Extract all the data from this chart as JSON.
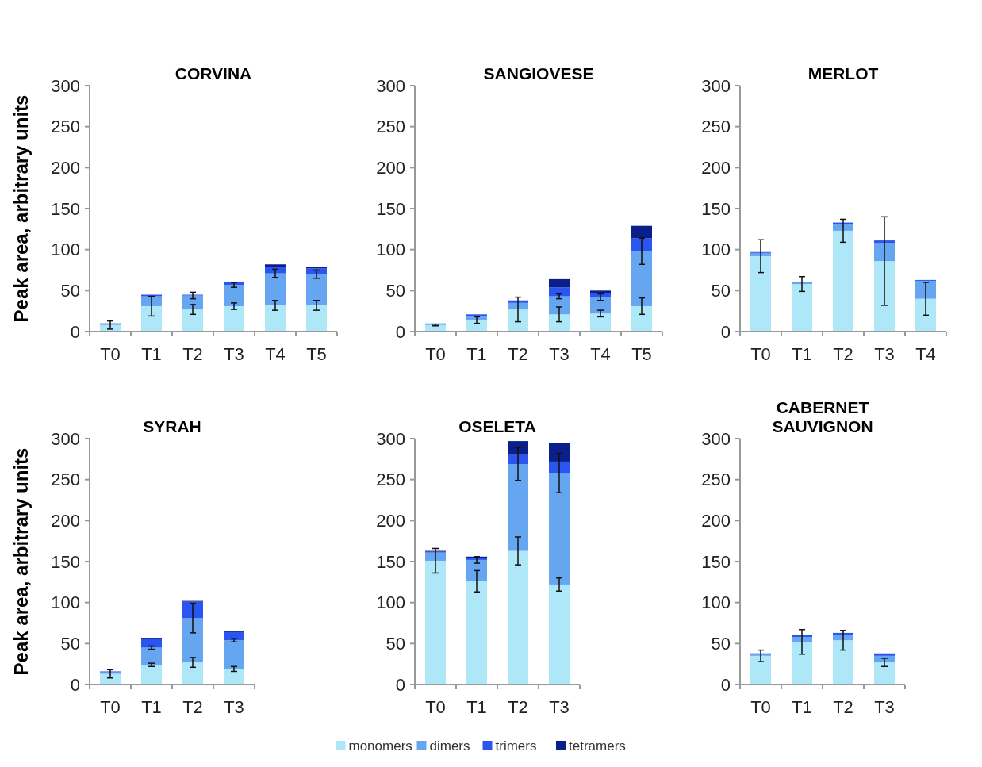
{
  "chart_data": [
    {
      "type": "bar",
      "stacked": true,
      "title": "CORVINA",
      "legend": "bottom",
      "ylabel": "Peak area, arbitrary units",
      "categories": [
        "T0",
        "T1",
        "T2",
        "T3",
        "T4",
        "T5"
      ],
      "ylim": [
        0,
        300
      ],
      "yticks": [
        0,
        50,
        100,
        150,
        200,
        250,
        300
      ],
      "series": [
        {
          "name": "monomers",
          "color": "#aee8f8",
          "values": [
            8,
            31,
            27,
            31,
            32,
            32
          ],
          "errors": [
            5,
            12,
            6,
            4,
            6,
            6
          ]
        },
        {
          "name": "dimers",
          "color": "#66a6f0",
          "values": [
            1,
            12,
            17,
            26,
            39,
            38
          ],
          "errors": [
            null,
            null,
            4,
            3,
            5,
            5
          ]
        },
        {
          "name": "trimers",
          "color": "#2a55f0",
          "values": [
            1,
            2,
            1,
            3,
            8,
            7
          ]
        },
        {
          "name": "tetramers",
          "color": "#0a1f8a",
          "values": [
            0,
            0,
            0,
            1,
            3,
            2
          ]
        }
      ]
    },
    {
      "type": "bar",
      "stacked": true,
      "title": "SANGIOVESE",
      "categories": [
        "T0",
        "T1",
        "T2",
        "T3",
        "T4",
        "T5"
      ],
      "ylim": [
        0,
        300
      ],
      "yticks": [
        0,
        50,
        100,
        150,
        200,
        250,
        300
      ],
      "series": [
        {
          "color": "#aee8f8",
          "values": [
            8,
            14,
            27,
            21,
            22,
            31
          ],
          "errors": [
            1,
            4,
            15,
            9,
            4,
            10
          ]
        },
        {
          "color": "#66a6f0",
          "values": [
            2,
            5,
            8,
            22,
            20,
            67
          ],
          "errors": [
            null,
            null,
            null,
            3,
            4,
            16
          ]
        },
        {
          "color": "#2a55f0",
          "values": [
            0,
            2,
            3,
            11,
            5,
            16
          ]
        },
        {
          "color": "#0a1f8a",
          "values": [
            0,
            0,
            0,
            10,
            3,
            15
          ]
        }
      ]
    },
    {
      "type": "bar",
      "stacked": true,
      "title": "MERLOT",
      "categories": [
        "T0",
        "T1",
        "T2",
        "T3",
        "T4"
      ],
      "ylim": [
        0,
        300
      ],
      "yticks": [
        0,
        50,
        100,
        150,
        200,
        250,
        300
      ],
      "series": [
        {
          "color": "#aee8f8",
          "values": [
            92,
            58,
            123,
            86,
            40
          ],
          "errors": [
            20,
            9,
            14,
            54,
            20
          ]
        },
        {
          "color": "#66a6f0",
          "values": [
            4,
            3,
            8,
            22,
            22
          ]
        },
        {
          "color": "#2a55f0",
          "values": [
            1,
            0,
            2,
            3,
            1
          ]
        },
        {
          "color": "#0a1f8a",
          "values": [
            0,
            0,
            0,
            1,
            0
          ]
        }
      ]
    },
    {
      "type": "bar",
      "stacked": true,
      "title": "SYRAH",
      "ylabel": "Peak area, arbitrary units",
      "categories": [
        "T0",
        "T1",
        "T2",
        "T3"
      ],
      "ylim": [
        0,
        300
      ],
      "yticks": [
        0,
        50,
        100,
        150,
        200,
        250,
        300
      ],
      "series": [
        {
          "color": "#aee8f8",
          "values": [
            13,
            24,
            27,
            19
          ],
          "errors": [
            5,
            2,
            6,
            3
          ]
        },
        {
          "color": "#66a6f0",
          "values": [
            2,
            21,
            54,
            35
          ],
          "errors": [
            null,
            2,
            18,
            2
          ]
        },
        {
          "color": "#2a55f0",
          "values": [
            1,
            11,
            20,
            10
          ]
        },
        {
          "color": "#0a1f8a",
          "values": [
            0,
            1,
            1,
            1
          ]
        }
      ]
    },
    {
      "type": "bar",
      "stacked": true,
      "title": "OSELETA",
      "categories": [
        "T0",
        "T1",
        "T2",
        "T3"
      ],
      "ylim": [
        0,
        300
      ],
      "yticks": [
        0,
        50,
        100,
        150,
        200,
        250,
        300
      ],
      "series": [
        {
          "color": "#aee8f8",
          "values": [
            151,
            126,
            163,
            122
          ],
          "errors": [
            15,
            13,
            17,
            8
          ]
        },
        {
          "color": "#66a6f0",
          "values": [
            10,
            26,
            106,
            136
          ],
          "errors": [
            null,
            4,
            20,
            24
          ]
        },
        {
          "color": "#2a55f0",
          "values": [
            1,
            2,
            11,
            14
          ]
        },
        {
          "color": "#0a1f8a",
          "values": [
            1,
            2,
            17,
            23
          ]
        }
      ]
    },
    {
      "type": "bar",
      "stacked": true,
      "title": "CABERNET\nSAUVIGNON",
      "categories": [
        "T0",
        "T1",
        "T2",
        "T3"
      ],
      "ylim": [
        0,
        300
      ],
      "yticks": [
        0,
        50,
        100,
        150,
        200,
        250,
        300
      ],
      "series": [
        {
          "color": "#aee8f8",
          "values": [
            35,
            52,
            54,
            27
          ],
          "errors": [
            7,
            15,
            12,
            5
          ]
        },
        {
          "color": "#66a6f0",
          "values": [
            2,
            6,
            6,
            8
          ]
        },
        {
          "color": "#2a55f0",
          "values": [
            1,
            3,
            3,
            3
          ]
        },
        {
          "color": "#0a1f8a",
          "values": [
            0,
            0,
            0,
            0
          ]
        }
      ]
    }
  ]
}
